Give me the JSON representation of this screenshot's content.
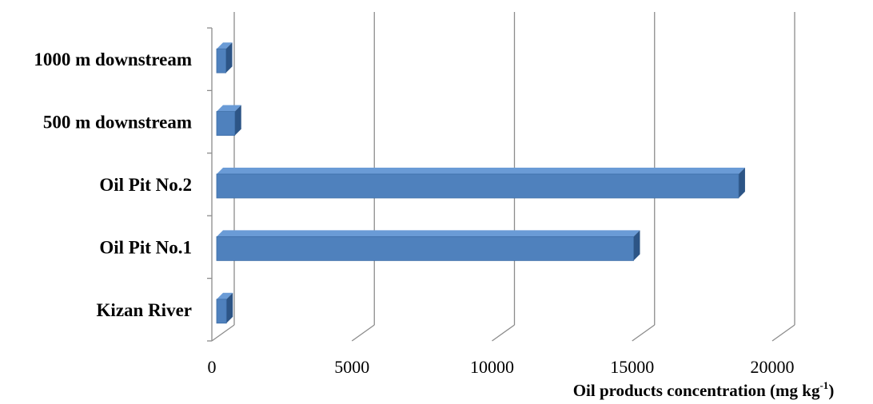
{
  "chart_data": {
    "type": "bar",
    "orientation": "horizontal",
    "style": "3d",
    "categories": [
      "Kizan River",
      "Oil Pit No.1",
      "Oil Pit No.2",
      "500 m downstream",
      "1000 m downstream"
    ],
    "series": [
      {
        "values": [
          520,
          15050,
          18800,
          820,
          500
        ]
      }
    ],
    "xlabel": {
      "main": "Oil products concentration (mg kg",
      "superscript": "-1",
      "close": ")"
    },
    "xlim": [
      0,
      20000
    ],
    "xticks": [
      "0",
      "5000",
      "10000",
      "15000",
      "20000"
    ],
    "grid": true,
    "legend": "none",
    "colors": {
      "bar_front": "#4F81BD",
      "bar_top": "#6A9BD6",
      "bar_side": "#2D5586",
      "grid": "#8C8C8C"
    }
  }
}
